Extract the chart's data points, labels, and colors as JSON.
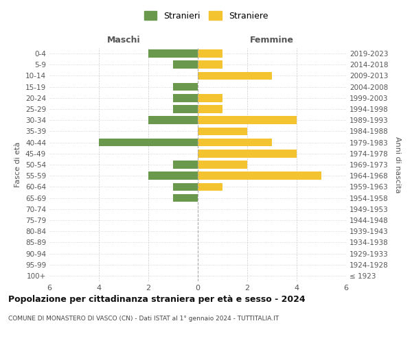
{
  "age_groups": [
    "100+",
    "95-99",
    "90-94",
    "85-89",
    "80-84",
    "75-79",
    "70-74",
    "65-69",
    "60-64",
    "55-59",
    "50-54",
    "45-49",
    "40-44",
    "35-39",
    "30-34",
    "25-29",
    "20-24",
    "15-19",
    "10-14",
    "5-9",
    "0-4"
  ],
  "birth_years": [
    "≤ 1923",
    "1924-1928",
    "1929-1933",
    "1934-1938",
    "1939-1943",
    "1944-1948",
    "1949-1953",
    "1954-1958",
    "1959-1963",
    "1964-1968",
    "1969-1973",
    "1974-1978",
    "1979-1983",
    "1984-1988",
    "1989-1993",
    "1994-1998",
    "1999-2003",
    "2004-2008",
    "2009-2013",
    "2014-2018",
    "2019-2023"
  ],
  "males": [
    0,
    0,
    0,
    0,
    0,
    0,
    0,
    1,
    1,
    2,
    1,
    0,
    4,
    0,
    2,
    1,
    1,
    1,
    0,
    1,
    2
  ],
  "females": [
    0,
    0,
    0,
    0,
    0,
    0,
    0,
    0,
    1,
    5,
    2,
    4,
    3,
    2,
    4,
    1,
    1,
    0,
    3,
    1,
    1
  ],
  "male_color": "#6a994e",
  "female_color": "#f4c430",
  "title": "Popolazione per cittadinanza straniera per età e sesso - 2024",
  "subtitle": "COMUNE DI MONASTERO DI VASCO (CN) - Dati ISTAT al 1° gennaio 2024 - TUTTITALIA.IT",
  "xlabel_left": "Maschi",
  "xlabel_right": "Femmine",
  "ylabel_left": "Fasce di età",
  "ylabel_right": "Anni di nascita",
  "legend_male": "Stranieri",
  "legend_female": "Straniere",
  "xlim": 6,
  "background_color": "#ffffff",
  "grid_color": "#cccccc"
}
